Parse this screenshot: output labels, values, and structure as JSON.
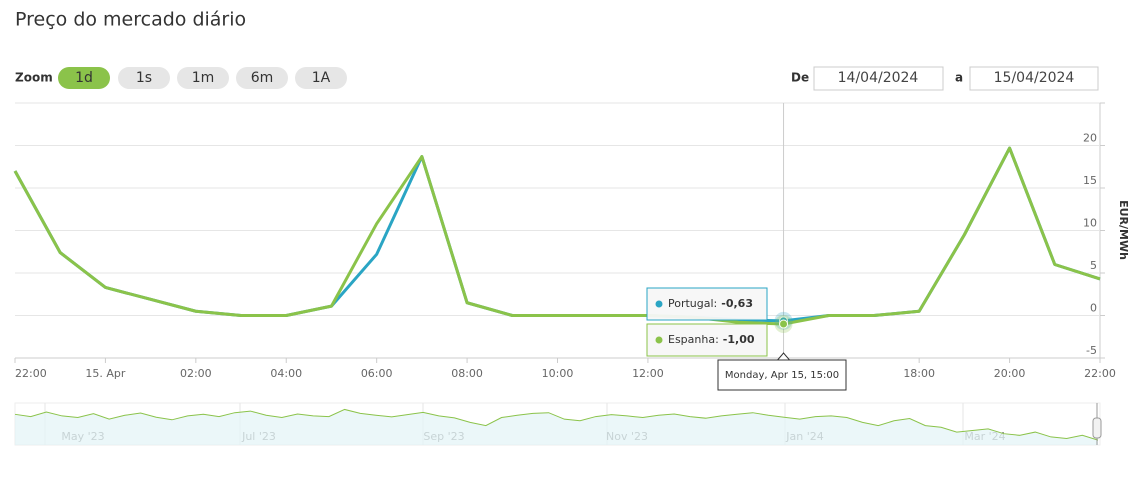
{
  "title": "Preço do mercado diário",
  "zoom": {
    "label": "Zoom",
    "buttons": [
      "1d",
      "1s",
      "1m",
      "6m",
      "1A"
    ],
    "active": 0
  },
  "range": {
    "from_label": "De",
    "from": "14/04/2024",
    "to_label": "a",
    "to": "15/04/2024"
  },
  "chart_data": {
    "type": "line",
    "y_label": "EUR/MWh",
    "x": [
      -2,
      -1,
      0,
      1,
      2,
      3,
      4,
      5,
      6,
      7,
      8,
      9,
      10,
      11,
      12,
      13,
      14,
      15,
      16,
      17,
      18,
      19,
      20,
      21,
      22
    ],
    "xlim": [
      -2,
      22
    ],
    "xticks": [
      {
        "value": -2,
        "label": "22:00"
      },
      {
        "value": 0,
        "label": "15. Apr"
      },
      {
        "value": 2,
        "label": "02:00"
      },
      {
        "value": 4,
        "label": "04:00"
      },
      {
        "value": 6,
        "label": "06:00"
      },
      {
        "value": 8,
        "label": "08:00"
      },
      {
        "value": 10,
        "label": "10:00"
      },
      {
        "value": 12,
        "label": "12:00"
      },
      {
        "value": 18,
        "label": "18:00"
      },
      {
        "value": 20,
        "label": "20:00"
      },
      {
        "value": 22,
        "label": "22:00"
      }
    ],
    "ylim": [
      -5,
      25
    ],
    "yticks": [
      -5,
      0,
      5,
      10,
      15,
      20
    ],
    "series": [
      {
        "label": "Portugal:",
        "color": "#2aa5c4",
        "values": [
          17,
          7.4,
          3.3,
          1.9,
          0.5,
          0,
          0,
          1.1,
          7.2,
          18.7,
          1.5,
          0,
          0,
          0,
          0,
          -0.2,
          -0.5,
          -0.63,
          0,
          0,
          0.5,
          9.5,
          19.7,
          6,
          4.3
        ],
        "value_labels": [
          null,
          null,
          null,
          null,
          null,
          null,
          null,
          null,
          null,
          null,
          null,
          null,
          null,
          null,
          null,
          null,
          null,
          "-0,63",
          null,
          null,
          null,
          null,
          null,
          null,
          null
        ]
      },
      {
        "label": "Espanha:",
        "color": "#8bc34a",
        "values": [
          17,
          7.4,
          3.3,
          1.9,
          0.5,
          0,
          0,
          1.1,
          10.8,
          18.7,
          1.5,
          0,
          0,
          0,
          0,
          -0.2,
          -0.8,
          -1,
          0,
          0,
          0.5,
          9.5,
          19.7,
          6,
          4.3
        ],
        "value_labels": [
          null,
          null,
          null,
          null,
          null,
          null,
          null,
          null,
          null,
          null,
          null,
          null,
          null,
          null,
          null,
          null,
          null,
          "-1,00",
          null,
          null,
          null,
          null,
          null,
          null,
          null
        ]
      }
    ],
    "tooltip": {
      "header": "Monday, Apr 15, 15:00",
      "x": 15
    },
    "navigator": {
      "labels": [
        "May '23",
        "Jul '23",
        "Sep '23",
        "Nov '23",
        "Jan '24",
        "Mar '24"
      ],
      "ylim": [
        0,
        130
      ],
      "values": [
        95,
        88,
        102,
        90,
        85,
        97,
        80,
        92,
        99,
        86,
        78,
        90,
        95,
        88,
        100,
        105,
        92,
        85,
        96,
        90,
        88,
        110,
        98,
        92,
        87,
        94,
        101,
        90,
        84,
        70,
        60,
        85,
        92,
        98,
        100,
        80,
        75,
        88,
        94,
        90,
        85,
        92,
        96,
        88,
        83,
        90,
        95,
        100,
        92,
        86,
        80,
        88,
        90,
        85,
        70,
        60,
        75,
        82,
        60,
        55,
        40,
        45,
        50,
        35,
        30,
        40,
        25,
        20,
        30,
        15
      ]
    }
  }
}
